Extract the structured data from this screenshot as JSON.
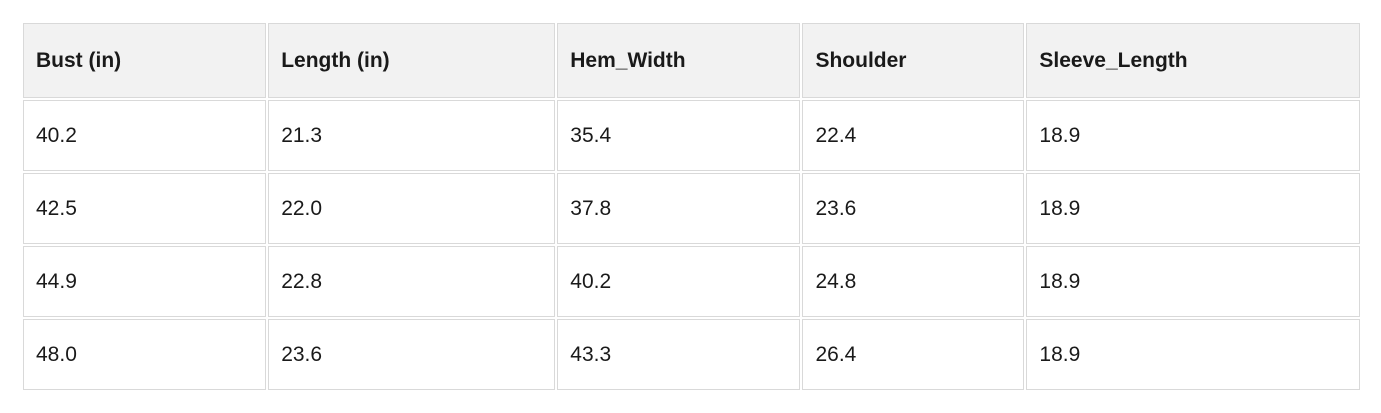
{
  "colors": {
    "page_background": "#ffffff",
    "header_background": "#f2f2f2",
    "cell_border": "#d9d9d9",
    "text": "#1a1a1a"
  },
  "table": {
    "headers": [
      "Bust (in)",
      "Length (in)",
      "Hem_Width",
      "Shoulder",
      "Sleeve_Length"
    ],
    "rows": [
      [
        "40.2",
        "21.3",
        "35.4",
        "22.4",
        "18.9"
      ],
      [
        "42.5",
        "22.0",
        "37.8",
        "23.6",
        "18.9"
      ],
      [
        "44.9",
        "22.8",
        "40.2",
        "24.8",
        "18.9"
      ],
      [
        "48.0",
        "23.6",
        "43.3",
        "26.4",
        "18.9"
      ]
    ]
  },
  "chart_data": {
    "type": "table",
    "title": "",
    "columns": [
      "Bust (in)",
      "Length (in)",
      "Hem_Width",
      "Shoulder",
      "Sleeve_Length"
    ],
    "rows": [
      [
        40.2,
        21.3,
        35.4,
        22.4,
        18.9
      ],
      [
        42.5,
        22.0,
        37.8,
        23.6,
        18.9
      ],
      [
        44.9,
        22.8,
        40.2,
        24.8,
        18.9
      ],
      [
        48.0,
        23.6,
        43.3,
        26.4,
        18.9
      ]
    ]
  }
}
